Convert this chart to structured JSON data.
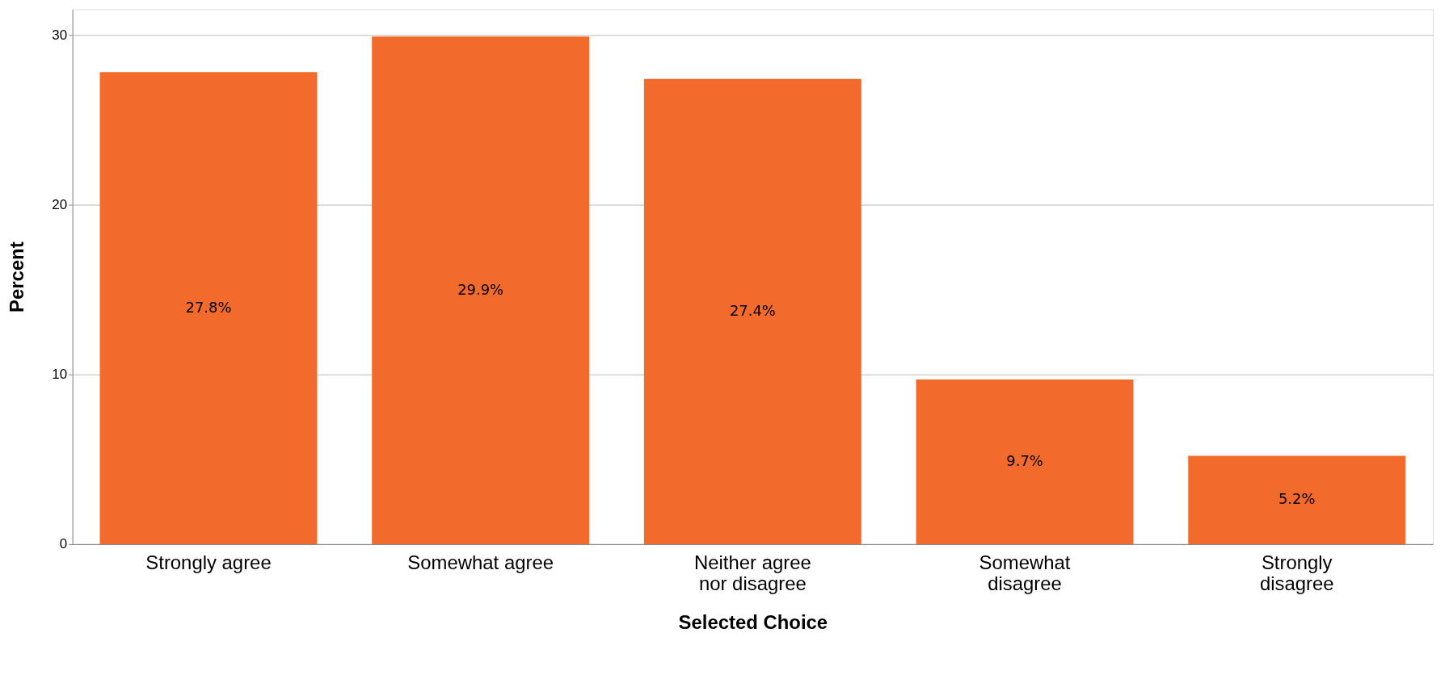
{
  "chart_data": {
    "type": "bar",
    "xlabel": "Selected Choice",
    "ylabel": "Percent",
    "categories": [
      "Strongly agree",
      "Somewhat agree",
      "Neither agree nor disagree",
      "Somewhat disagree",
      "Strongly disagree"
    ],
    "values": [
      27.8,
      29.9,
      27.4,
      9.7,
      5.2
    ],
    "value_labels": [
      "27.8%",
      "29.9%",
      "27.4%",
      "9.7%",
      "5.2%"
    ],
    "color": "#f26b2d",
    "ylim": [
      0,
      31.5
    ],
    "yticks": [
      0,
      10,
      20,
      30
    ],
    "grid": "y"
  }
}
